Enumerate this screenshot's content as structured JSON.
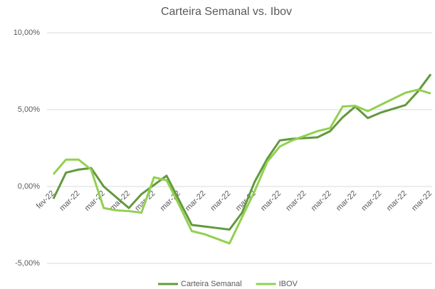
{
  "chart_data": {
    "type": "line",
    "title": "Carteira Semanal vs. Ibov",
    "categories": [
      "fev-22",
      null,
      "mar-22",
      null,
      "mar-22",
      null,
      "mar-22",
      null,
      "mar-22",
      null,
      "mar-22",
      null,
      "mar-22",
      null,
      "mar-22",
      null,
      "mar-22",
      null,
      "mar-22",
      null,
      "mar-22",
      null,
      "mar-22",
      null,
      "mar-22",
      null,
      "mar-22",
      null,
      "mar-22",
      null,
      "mar-22"
    ],
    "series": [
      {
        "name": "Carteira Semanal",
        "color": "#63993d",
        "values": [
          -0.8,
          0.9,
          1.1,
          1.2,
          0.0,
          -0.7,
          -1.4,
          -0.5,
          0.1,
          0.7,
          -0.9,
          -2.5,
          -2.6,
          -2.7,
          -2.8,
          -1.7,
          0.3,
          1.8,
          3.0,
          3.1,
          3.15,
          3.2,
          3.6,
          4.5,
          5.2,
          4.45,
          4.8,
          5.05,
          5.3,
          6.2,
          7.3
        ]
      },
      {
        "name": "IBOV",
        "color": "#92d050",
        "values": [
          0.8,
          1.75,
          1.75,
          1.1,
          -1.4,
          -1.55,
          -1.6,
          -1.7,
          0.6,
          0.4,
          -1.2,
          -2.9,
          -3.1,
          -3.4,
          -3.7,
          -2.0,
          -0.3,
          1.6,
          2.6,
          3.0,
          3.3,
          3.6,
          3.8,
          5.2,
          5.25,
          4.9,
          5.3,
          5.7,
          6.1,
          6.3,
          6.05
        ]
      }
    ],
    "ylim": [
      -5,
      10
    ],
    "yticks": [
      {
        "value": -5,
        "label": "-5,00%"
      },
      {
        "value": 0,
        "label": "0,00%"
      },
      {
        "value": 5,
        "label": "5,00%"
      },
      {
        "value": 10,
        "label": "10,00%"
      }
    ],
    "grid": true,
    "legend": "bottom"
  }
}
